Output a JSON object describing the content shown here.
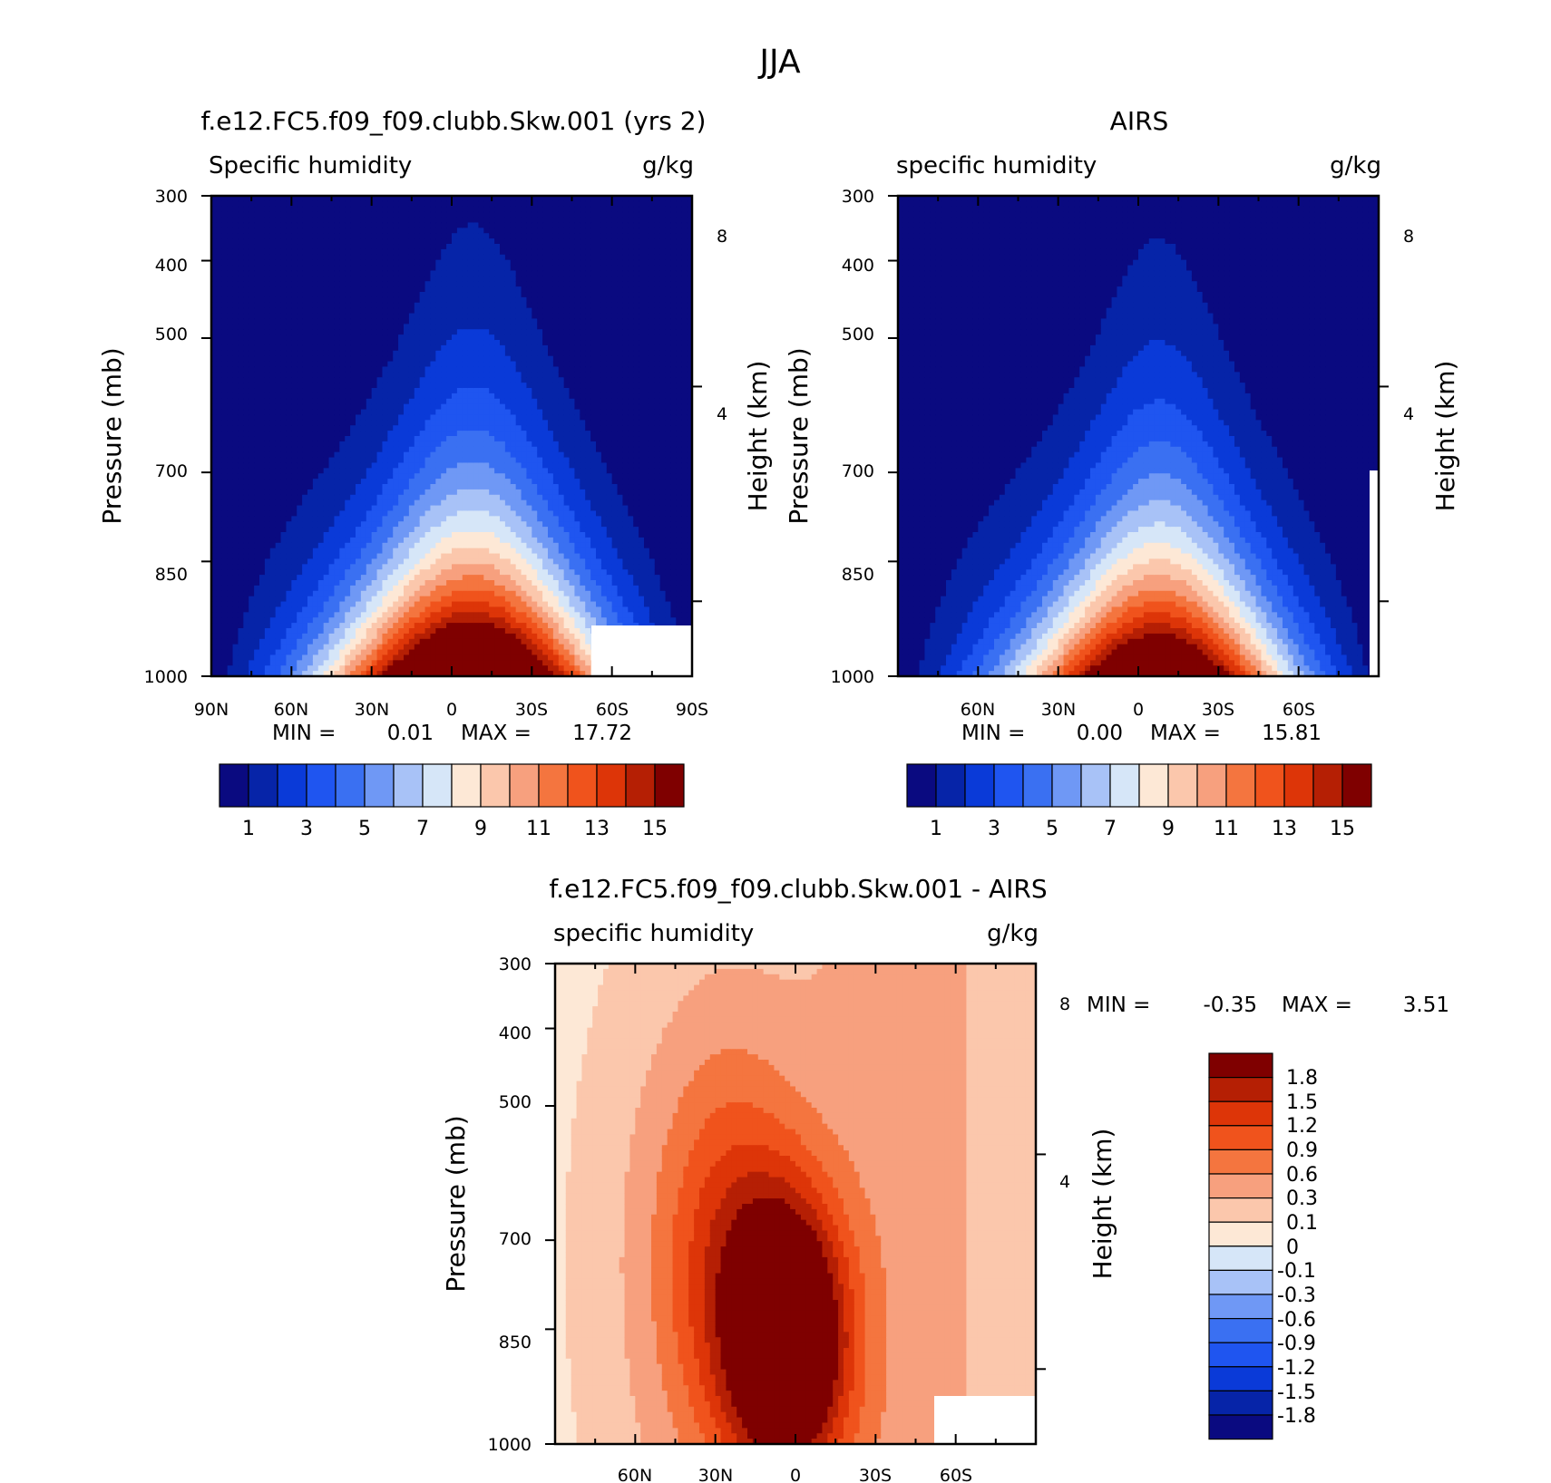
{
  "figure": {
    "title": "JJA",
    "colors": {
      "model_scale": [
        "#0a0a80",
        "#0624a8",
        "#0a3ad8",
        "#1f55f0",
        "#3a70f2",
        "#6f98f5",
        "#a8c2f7",
        "#d6e6f8",
        "#fde8d6",
        "#fbc7ac",
        "#f7a07e",
        "#f4753f",
        "#f0531c",
        "#dd3508",
        "#b51f04",
        "#7f0000"
      ],
      "diff_scale": [
        "#0a0a80",
        "#0624a8",
        "#0a3ad8",
        "#1f55f0",
        "#3a70f2",
        "#6f98f5",
        "#a8c2f7",
        "#d6e6f8",
        "#fde8d6",
        "#fbc7ac",
        "#f7a07e",
        "#f4753f",
        "#f0531c",
        "#dd3508",
        "#b51f04",
        "#7f0000"
      ]
    }
  },
  "chart_data": [
    {
      "type": "contour",
      "title": "f.e12.FC5.f09_f09.clubb.Skw.001 (yrs 2)",
      "variable_label": "Specific humidity",
      "units": "g/kg",
      "ylabel": "Pressure (mb)",
      "ylabel_right": "Height (km)",
      "ylim": [
        1000,
        300
      ],
      "yscale": "log",
      "yticks": [
        "300",
        "400",
        "500",
        "700",
        "850",
        "1000"
      ],
      "yticks_right": [
        "8",
        "4"
      ],
      "xticks": [
        "90N",
        "60N",
        "30N",
        "0",
        "30S",
        "60S",
        "90S"
      ],
      "min_label": "MIN =",
      "min_value": "0.01",
      "max_label": "MAX =",
      "max_value": "17.72",
      "colorbar_labels": [
        "1",
        "3",
        "5",
        "7",
        "9",
        "11",
        "13",
        "15"
      ],
      "peak_lat": -8,
      "lat_range": [
        90,
        -90
      ]
    },
    {
      "type": "contour",
      "title": "AIRS",
      "variable_label": "specific humidity",
      "units": "g/kg",
      "ylabel": "Pressure (mb)",
      "ylabel_right": "Height (km)",
      "ylim": [
        1000,
        300
      ],
      "yscale": "log",
      "yticks": [
        "300",
        "400",
        "500",
        "700",
        "850",
        "1000"
      ],
      "yticks_right": [
        "8",
        "4"
      ],
      "xticks": [
        "60N",
        "30N",
        "0",
        "30S",
        "60S"
      ],
      "min_label": "MIN =",
      "min_value": "0.00",
      "max_label": "MAX =",
      "max_value": "15.81",
      "colorbar_labels": [
        "1",
        "3",
        "5",
        "7",
        "9",
        "11",
        "13",
        "15"
      ],
      "peak_lat": -8,
      "lat_range": [
        90,
        -90
      ]
    },
    {
      "type": "contour",
      "title": "f.e12.FC5.f09_f09.clubb.Skw.001 - AIRS",
      "variable_label": "specific humidity",
      "units": "g/kg",
      "ylabel": "Pressure (mb)",
      "ylabel_right": "Height (km)",
      "ylim": [
        1000,
        300
      ],
      "yscale": "log",
      "yticks": [
        "300",
        "400",
        "500",
        "700",
        "850",
        "1000"
      ],
      "yticks_right": [
        "8",
        "4"
      ],
      "xticks": [
        "60N",
        "30N",
        "0",
        "30S",
        "60S"
      ],
      "min_label": "MIN =",
      "min_value": "-0.35",
      "max_label": "MAX =",
      "max_value": "3.51",
      "colorbar_labels": [
        "1.8",
        "1.5",
        "1.2",
        "0.9",
        "0.6",
        "0.3",
        "0.1",
        "0",
        "-0.1",
        "-0.3",
        "-0.6",
        "-0.9",
        "-1.2",
        "-1.5",
        "-1.8"
      ],
      "lat_range": [
        90,
        -90
      ]
    }
  ]
}
